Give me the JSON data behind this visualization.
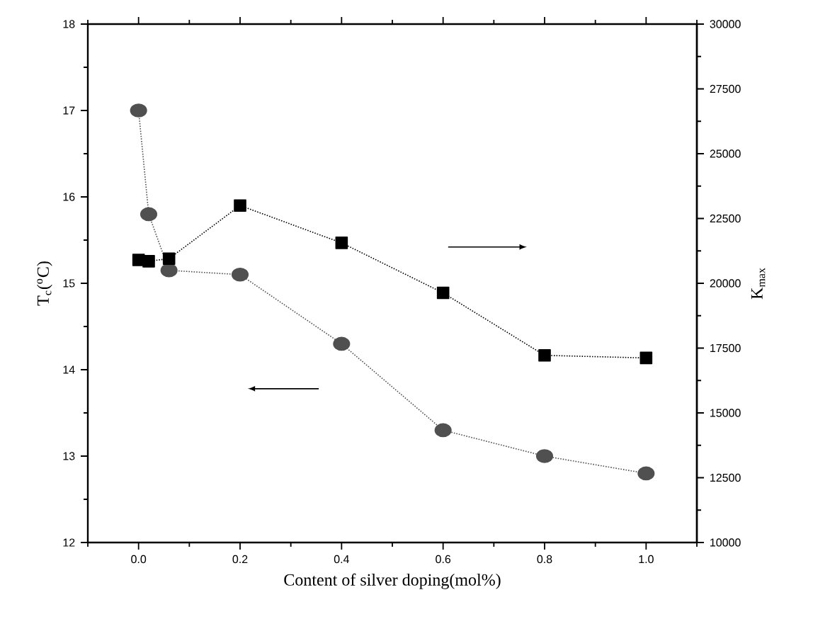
{
  "chart_data": {
    "type": "line",
    "xlabel": "Content of silver doping(mol%)",
    "ylabel": "T$_{c}$($^{o}$C)",
    "y2label": "K$_{max}$",
    "x": [
      0,
      0.02,
      0.06,
      0.2,
      0.4,
      0.6,
      0.8,
      1.0
    ],
    "series": [
      {
        "color": "#505050",
        "marker": "circle",
        "line_style": "dotted",
        "values": [
          17.0,
          15.8,
          15.15,
          15.1,
          14.3,
          13.3,
          13.0,
          12.8
        ]
      },
      {
        "color": "#000000",
        "marker": "square",
        "line_style": "dotted",
        "axis": "y2",
        "values": [
          20900,
          20850,
          20950,
          23000,
          21560,
          19630,
          17220,
          17120
        ]
      }
    ],
    "xlim": [
      -0.1,
      1.1
    ],
    "xticks": [
      {
        "value": -0.1,
        "label": null
      },
      {
        "value": 0,
        "label": "0.0"
      },
      {
        "value": 0.1,
        "label": null
      },
      0.2,
      {
        "value": 0.3,
        "label": null
      },
      0.4,
      {
        "value": 0.5,
        "label": null
      },
      0.6,
      {
        "value": 0.7,
        "label": null
      },
      0.8,
      {
        "value": 0.9,
        "label": null
      },
      {
        "value": 1,
        "label": "1.0"
      },
      {
        "value": 1.1,
        "label": null
      }
    ],
    "ylim": [
      12,
      18
    ],
    "yticks": [
      12,
      {
        "value": 12.5,
        "label": null
      },
      13,
      {
        "value": 13.5,
        "label": null
      },
      14,
      {
        "value": 14.5,
        "label": null
      },
      15,
      {
        "value": 15.5,
        "label": null
      },
      16,
      {
        "value": 16.5,
        "label": null
      },
      17,
      {
        "value": 17.5,
        "label": null
      },
      18
    ],
    "y2lim": [
      10000,
      30000
    ],
    "y2ticks": [
      10000,
      {
        "value": 11250,
        "label": null
      },
      12500,
      {
        "value": 13750,
        "label": null
      },
      15000,
      {
        "value": 16250,
        "label": null
      },
      17500,
      {
        "value": 18750,
        "label": null
      },
      20000,
      {
        "value": 21250,
        "label": null
      },
      22500,
      {
        "value": 23750,
        "label": null
      },
      25000,
      {
        "value": 26250,
        "label": null
      },
      27500,
      {
        "value": 28750,
        "label": null
      },
      30000
    ],
    "grid": false
  }
}
